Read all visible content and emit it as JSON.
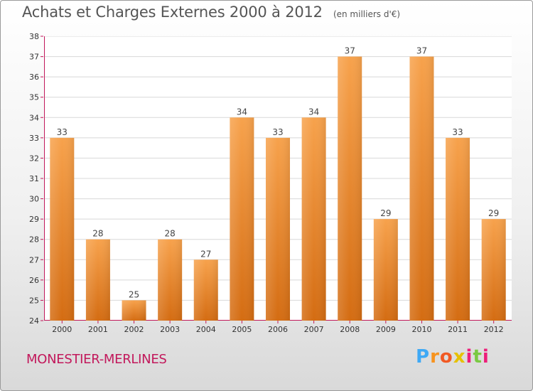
{
  "header": {
    "title": "Achats et Charges Externes 2000 à 2012",
    "unit": "(en milliers d'€)"
  },
  "footer": {
    "commune": "MONESTIER-MERLINES",
    "brand": "Proxiti"
  },
  "colors": {
    "bar_light": "#f7a24c",
    "bar_dark": "#d46c12",
    "axis": "#c2185b",
    "grid": "#d8d8d8"
  },
  "chart_data": {
    "type": "bar",
    "categories": [
      "2000",
      "2001",
      "2002",
      "2003",
      "2004",
      "2005",
      "2006",
      "2007",
      "2008",
      "2009",
      "2010",
      "2011",
      "2012"
    ],
    "values": [
      33,
      28,
      25,
      28,
      27,
      34,
      33,
      34,
      37,
      29,
      37,
      33,
      29
    ],
    "ylim": [
      24,
      38
    ],
    "yticks": [
      24,
      25,
      26,
      27,
      28,
      29,
      30,
      31,
      32,
      33,
      34,
      35,
      36,
      37,
      38
    ],
    "grid": true,
    "data_labels": true
  }
}
